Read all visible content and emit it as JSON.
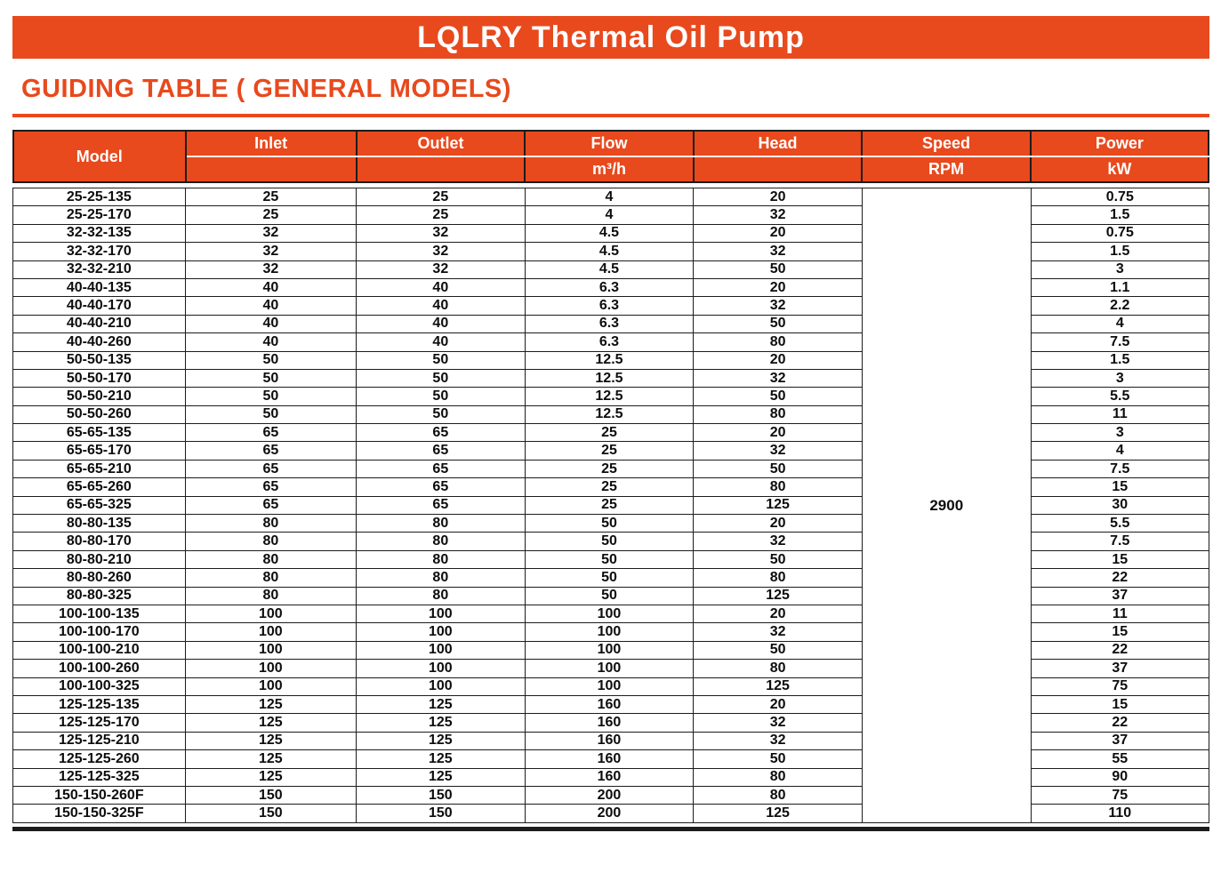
{
  "page": {
    "title": "LQLRY Thermal Oil Pump",
    "section_heading": "GUIDING TABLE ( GENERAL MODELS)"
  },
  "colors": {
    "accent": "#e8491d",
    "header_text": "#ffffff",
    "body_text": "#0d0d0d",
    "border": "#1c1c1c"
  },
  "table": {
    "headers": {
      "model": "Model",
      "inlet": "Inlet",
      "outlet": "Outlet",
      "flow": "Flow",
      "flow_unit": "m³/h",
      "head": "Head",
      "speed": "Speed",
      "speed_unit": "RPM",
      "power": "Power",
      "power_unit": "kW"
    },
    "speed_value": "2900",
    "columns_order": [
      "model",
      "inlet",
      "outlet",
      "flow",
      "head",
      "speed",
      "power"
    ],
    "rows": [
      [
        "25-25-135",
        "25",
        "25",
        "4",
        "20",
        "0.75"
      ],
      [
        "25-25-170",
        "25",
        "25",
        "4",
        "32",
        "1.5"
      ],
      [
        "32-32-135",
        "32",
        "32",
        "4.5",
        "20",
        "0.75"
      ],
      [
        "32-32-170",
        "32",
        "32",
        "4.5",
        "32",
        "1.5"
      ],
      [
        "32-32-210",
        "32",
        "32",
        "4.5",
        "50",
        "3"
      ],
      [
        "40-40-135",
        "40",
        "40",
        "6.3",
        "20",
        "1.1"
      ],
      [
        "40-40-170",
        "40",
        "40",
        "6.3",
        "32",
        "2.2"
      ],
      [
        "40-40-210",
        "40",
        "40",
        "6.3",
        "50",
        "4"
      ],
      [
        "40-40-260",
        "40",
        "40",
        "6.3",
        "80",
        "7.5"
      ],
      [
        "50-50-135",
        "50",
        "50",
        "12.5",
        "20",
        "1.5"
      ],
      [
        "50-50-170",
        "50",
        "50",
        "12.5",
        "32",
        "3"
      ],
      [
        "50-50-210",
        "50",
        "50",
        "12.5",
        "50",
        "5.5"
      ],
      [
        "50-50-260",
        "50",
        "50",
        "12.5",
        "80",
        "11"
      ],
      [
        "65-65-135",
        "65",
        "65",
        "25",
        "20",
        "3"
      ],
      [
        "65-65-170",
        "65",
        "65",
        "25",
        "32",
        "4"
      ],
      [
        "65-65-210",
        "65",
        "65",
        "25",
        "50",
        "7.5"
      ],
      [
        "65-65-260",
        "65",
        "65",
        "25",
        "80",
        "15"
      ],
      [
        "65-65-325",
        "65",
        "65",
        "25",
        "125",
        "30"
      ],
      [
        "80-80-135",
        "80",
        "80",
        "50",
        "20",
        "5.5"
      ],
      [
        "80-80-170",
        "80",
        "80",
        "50",
        "32",
        "7.5"
      ],
      [
        "80-80-210",
        "80",
        "80",
        "50",
        "50",
        "15"
      ],
      [
        "80-80-260",
        "80",
        "80",
        "50",
        "80",
        "22"
      ],
      [
        "80-80-325",
        "80",
        "80",
        "50",
        "125",
        "37"
      ],
      [
        "100-100-135",
        "100",
        "100",
        "100",
        "20",
        "11"
      ],
      [
        "100-100-170",
        "100",
        "100",
        "100",
        "32",
        "15"
      ],
      [
        "100-100-210",
        "100",
        "100",
        "100",
        "50",
        "22"
      ],
      [
        "100-100-260",
        "100",
        "100",
        "100",
        "80",
        "37"
      ],
      [
        "100-100-325",
        "100",
        "100",
        "100",
        "125",
        "75"
      ],
      [
        "125-125-135",
        "125",
        "125",
        "160",
        "20",
        "15"
      ],
      [
        "125-125-170",
        "125",
        "125",
        "160",
        "32",
        "22"
      ],
      [
        "125-125-210",
        "125",
        "125",
        "160",
        "32",
        "37"
      ],
      [
        "125-125-260",
        "125",
        "125",
        "160",
        "50",
        "55"
      ],
      [
        "125-125-325",
        "125",
        "125",
        "160",
        "80",
        "90"
      ],
      [
        "150-150-260F",
        "150",
        "150",
        "200",
        "80",
        "75"
      ],
      [
        "150-150-325F",
        "150",
        "150",
        "200",
        "125",
        "110"
      ]
    ]
  }
}
